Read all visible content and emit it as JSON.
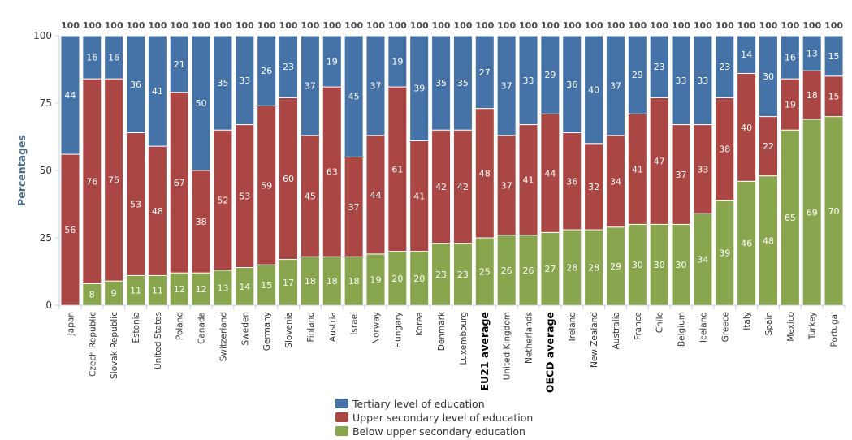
{
  "chart_data": {
    "type": "bar",
    "stacked": true,
    "ylabel": "Percentages",
    "ylim": [
      0,
      100
    ],
    "yticks": [
      0,
      25,
      50,
      75,
      100
    ],
    "legend_position": "bottom",
    "grid": false,
    "categories": [
      "Japan",
      "Czech Republic",
      "Slovak Republic",
      "Estonia",
      "United States",
      "Poland",
      "Canada",
      "Switzerland",
      "Sweden",
      "Germany",
      "Slovenia",
      "Finland",
      "Austria",
      "Israel",
      "Norway",
      "Hungary",
      "Korea",
      "Denmark",
      "Luxembourg",
      "EU21 average",
      "United Kingdom",
      "Netherlands",
      "OECD average",
      "Ireland",
      "New Zealand",
      "Australia",
      "France",
      "Chile",
      "Belgium",
      "Iceland",
      "Greece",
      "Italy",
      "Spain",
      "Mexico",
      "Turkey",
      "Portugal"
    ],
    "highlight_categories": [
      "EU21 average",
      "OECD average"
    ],
    "totals": [
      100,
      100,
      100,
      100,
      100,
      100,
      100,
      100,
      100,
      100,
      100,
      100,
      100,
      100,
      100,
      100,
      100,
      100,
      100,
      100,
      100,
      100,
      100,
      100,
      100,
      100,
      100,
      100,
      100,
      100,
      100,
      100,
      100,
      100,
      100,
      100
    ],
    "series": [
      {
        "name": "Below upper secondary education",
        "color": "#89a54e",
        "values": [
          0,
          8,
          9,
          11,
          11,
          12,
          12,
          13,
          14,
          15,
          17,
          18,
          18,
          18,
          19,
          20,
          20,
          23,
          23,
          25,
          26,
          26,
          27,
          28,
          28,
          29,
          30,
          30,
          30,
          34,
          39,
          46,
          48,
          65,
          69,
          70
        ]
      },
      {
        "name": "Upper secondary level of education",
        "color": "#aa4643",
        "values": [
          56,
          76,
          75,
          53,
          48,
          67,
          38,
          52,
          53,
          59,
          60,
          45,
          63,
          37,
          44,
          61,
          41,
          42,
          42,
          48,
          37,
          41,
          44,
          36,
          32,
          34,
          41,
          47,
          37,
          33,
          38,
          40,
          22,
          19,
          18,
          15
        ]
      },
      {
        "name": "Tertiary level of education",
        "color": "#4572a7",
        "values": [
          44,
          16,
          16,
          36,
          41,
          21,
          50,
          35,
          33,
          26,
          23,
          37,
          19,
          45,
          37,
          19,
          39,
          35,
          35,
          27,
          37,
          33,
          29,
          36,
          40,
          37,
          29,
          23,
          33,
          33,
          23,
          14,
          30,
          16,
          13,
          15
        ]
      }
    ],
    "legend_order": [
      "Tertiary level of education",
      "Upper secondary level of education",
      "Below upper secondary education"
    ]
  }
}
